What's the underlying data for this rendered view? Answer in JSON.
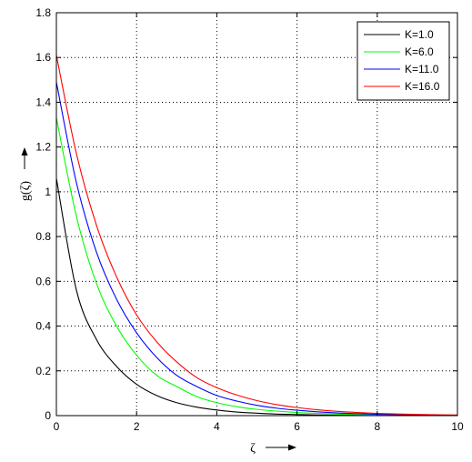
{
  "chart_data": {
    "type": "line",
    "title": "",
    "xlabel": "ζ",
    "ylabel": "g(ζ)",
    "xlim": [
      0,
      10
    ],
    "ylim": [
      0,
      1.8
    ],
    "xticks": [
      "0",
      "2",
      "4",
      "6",
      "8",
      "10"
    ],
    "yticks": [
      "0",
      "0.2",
      "0.4",
      "0.6",
      "0.8",
      "1",
      "1.2",
      "1.4",
      "1.6",
      "1.8"
    ],
    "grid": true,
    "legend_position": "top-right",
    "x": [
      0,
      0.5,
      1,
      1.5,
      2,
      2.5,
      3,
      3.5,
      4,
      4.5,
      5,
      5.5,
      6,
      6.5,
      7,
      7.5,
      8,
      8.5,
      9,
      9.5,
      10
    ],
    "series": [
      {
        "name": "K=1.0",
        "color": "#000000",
        "values": [
          1.06,
          0.56,
          0.34,
          0.22,
          0.14,
          0.09,
          0.058,
          0.038,
          0.025,
          0.016,
          0.011,
          0.007,
          0.005,
          0.003,
          0.002,
          0.0015,
          0.001,
          0.0007,
          0.0005,
          0.0003,
          0.0002
        ]
      },
      {
        "name": "K=6.0",
        "color": "#00ff00",
        "values": [
          1.33,
          0.89,
          0.59,
          0.4,
          0.27,
          0.18,
          0.13,
          0.085,
          0.058,
          0.04,
          0.028,
          0.02,
          0.014,
          0.01,
          0.007,
          0.005,
          0.004,
          0.003,
          0.002,
          0.0015,
          0.001
        ]
      },
      {
        "name": "K=11.0",
        "color": "#0000ff",
        "values": [
          1.49,
          1.04,
          0.73,
          0.52,
          0.37,
          0.26,
          0.18,
          0.13,
          0.09,
          0.065,
          0.046,
          0.033,
          0.024,
          0.017,
          0.012,
          0.009,
          0.006,
          0.0045,
          0.003,
          0.002,
          0.0015
        ]
      },
      {
        "name": "K=16.0",
        "color": "#ff0000",
        "values": [
          1.61,
          1.17,
          0.85,
          0.62,
          0.45,
          0.33,
          0.24,
          0.17,
          0.125,
          0.092,
          0.067,
          0.049,
          0.036,
          0.026,
          0.019,
          0.014,
          0.01,
          0.0075,
          0.0055,
          0.004,
          0.003
        ]
      }
    ]
  }
}
